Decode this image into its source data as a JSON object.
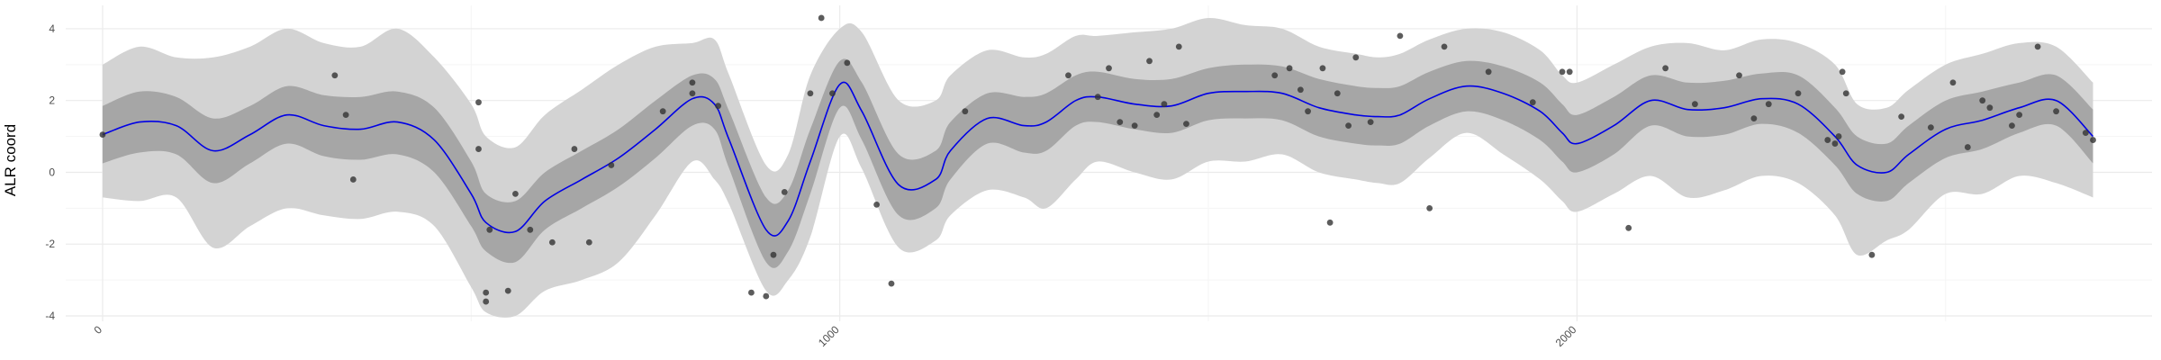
{
  "chart_data": {
    "type": "line",
    "title": "",
    "xlabel": "",
    "ylabel": "ALR coord",
    "xlim": [
      -50,
      2780
    ],
    "ylim": [
      -4.15,
      4.65
    ],
    "x_ticks": [
      0,
      1000,
      2000
    ],
    "x_tick_labels": [
      "0",
      "1000",
      "2000"
    ],
    "y_ticks": [
      -4,
      -2,
      0,
      2,
      4
    ],
    "y_tick_labels": [
      "-4",
      "-2",
      "0",
      "2",
      "4"
    ],
    "grid": true,
    "legend": "none",
    "colors": {
      "mean_line": "#0000e6",
      "inner_band": "#a6a6a6",
      "outer_band": "#d3d3d3",
      "points": "#333333",
      "grid_major": "#ebebeb",
      "grid_minor": "#f5f5f5"
    },
    "series": [
      {
        "kind": "mean",
        "x": [
          0,
          50,
          100,
          150,
          200,
          250,
          300,
          350,
          400,
          450,
          500,
          520,
          560,
          600,
          650,
          700,
          750,
          800,
          830,
          850,
          900,
          930,
          960,
          1000,
          1030,
          1080,
          1130,
          1150,
          1200,
          1250,
          1280,
          1320,
          1350,
          1400,
          1450,
          1500,
          1550,
          1600,
          1650,
          1700,
          1730,
          1760,
          1800,
          1850,
          1900,
          1950,
          1980,
          2000,
          2050,
          2100,
          2150,
          2200,
          2250,
          2300,
          2350,
          2380,
          2420,
          2450,
          2500,
          2550,
          2600,
          2650,
          2700
        ],
        "y": [
          1.05,
          1.4,
          1.3,
          0.6,
          1.05,
          1.6,
          1.3,
          1.2,
          1.4,
          0.9,
          -0.6,
          -1.4,
          -1.65,
          -0.8,
          -0.2,
          0.4,
          1.2,
          2.05,
          1.9,
          0.9,
          -1.6,
          -1.35,
          0.3,
          2.45,
          1.7,
          -0.35,
          -0.2,
          0.6,
          1.5,
          1.3,
          1.4,
          2.0,
          2.1,
          1.9,
          1.85,
          2.2,
          2.25,
          2.2,
          1.8,
          1.6,
          1.55,
          1.6,
          2.05,
          2.4,
          2.2,
          1.7,
          1.1,
          0.8,
          1.3,
          2.0,
          1.75,
          1.8,
          2.05,
          1.9,
          1.0,
          0.2,
          0.0,
          0.5,
          1.2,
          1.45,
          1.8,
          2.0,
          1.0
        ]
      },
      {
        "kind": "inner_band",
        "x": [
          0,
          50,
          100,
          150,
          200,
          250,
          300,
          350,
          400,
          450,
          500,
          520,
          560,
          600,
          650,
          700,
          750,
          800,
          830,
          850,
          900,
          930,
          960,
          1000,
          1030,
          1080,
          1130,
          1150,
          1200,
          1250,
          1280,
          1320,
          1350,
          1400,
          1450,
          1500,
          1550,
          1600,
          1650,
          1700,
          1730,
          1760,
          1800,
          1850,
          1900,
          1950,
          1980,
          2000,
          2050,
          2100,
          2150,
          2200,
          2250,
          2300,
          2350,
          2380,
          2420,
          2450,
          2500,
          2550,
          2600,
          2650,
          2700
        ],
        "upper": [
          1.85,
          2.25,
          2.1,
          1.5,
          1.85,
          2.4,
          2.15,
          2.1,
          2.25,
          1.8,
          0.3,
          -0.6,
          -0.8,
          0.0,
          0.6,
          1.2,
          2.0,
          2.7,
          2.6,
          1.7,
          -0.7,
          -0.5,
          1.2,
          3.1,
          2.5,
          0.5,
          0.6,
          1.4,
          2.2,
          2.1,
          2.2,
          2.7,
          2.8,
          2.6,
          2.6,
          2.9,
          3.0,
          2.95,
          2.6,
          2.4,
          2.35,
          2.4,
          2.8,
          3.1,
          2.95,
          2.5,
          1.9,
          1.6,
          2.1,
          2.7,
          2.5,
          2.55,
          2.75,
          2.7,
          1.8,
          1.0,
          0.8,
          1.3,
          2.0,
          2.25,
          2.5,
          2.7,
          1.75
        ],
        "lower": [
          0.25,
          0.55,
          0.5,
          -0.3,
          0.25,
          0.8,
          0.45,
          0.35,
          0.5,
          0.0,
          -1.5,
          -2.2,
          -2.5,
          -1.6,
          -1.0,
          -0.4,
          0.4,
          1.3,
          1.2,
          0.1,
          -2.5,
          -2.2,
          -0.6,
          1.8,
          0.9,
          -1.2,
          -1.0,
          -0.2,
          0.8,
          0.55,
          0.6,
          1.3,
          1.4,
          1.2,
          1.1,
          1.45,
          1.5,
          1.45,
          1.0,
          0.8,
          0.75,
          0.8,
          1.3,
          1.7,
          1.45,
          0.9,
          0.3,
          0.0,
          0.5,
          1.3,
          1.0,
          1.05,
          1.35,
          1.1,
          0.2,
          -0.6,
          -0.8,
          -0.3,
          0.4,
          0.65,
          1.1,
          1.3,
          0.25
        ]
      },
      {
        "kind": "outer_band",
        "x": [
          0,
          50,
          100,
          150,
          200,
          250,
          300,
          350,
          400,
          450,
          500,
          520,
          560,
          600,
          650,
          700,
          750,
          800,
          830,
          850,
          900,
          930,
          960,
          1000,
          1030,
          1080,
          1130,
          1150,
          1200,
          1250,
          1280,
          1320,
          1350,
          1400,
          1450,
          1500,
          1550,
          1600,
          1650,
          1700,
          1730,
          1760,
          1800,
          1850,
          1900,
          1950,
          1980,
          2000,
          2050,
          2100,
          2150,
          2200,
          2250,
          2300,
          2350,
          2380,
          2420,
          2450,
          2500,
          2550,
          2600,
          2650,
          2700
        ],
        "upper": [
          3.0,
          3.5,
          3.2,
          3.2,
          3.5,
          4.0,
          3.6,
          3.5,
          4.0,
          3.2,
          1.9,
          1.0,
          0.7,
          1.6,
          2.3,
          3.0,
          3.5,
          3.6,
          3.7,
          2.7,
          0.2,
          0.5,
          2.7,
          4.0,
          3.9,
          2.0,
          2.0,
          2.7,
          3.4,
          3.2,
          3.3,
          3.8,
          3.8,
          3.9,
          4.0,
          4.3,
          4.1,
          4.0,
          3.5,
          3.3,
          3.2,
          3.3,
          3.7,
          4.0,
          3.9,
          3.4,
          2.7,
          2.5,
          3.0,
          3.5,
          3.6,
          3.4,
          3.7,
          3.6,
          3.0,
          1.9,
          1.8,
          2.3,
          3.0,
          3.3,
          3.6,
          3.5,
          2.5
        ],
        "lower": [
          -0.7,
          -0.8,
          -0.7,
          -2.1,
          -1.5,
          -1.0,
          -1.2,
          -1.3,
          -1.1,
          -1.5,
          -3.2,
          -3.9,
          -4.0,
          -3.3,
          -3.0,
          -2.5,
          -1.2,
          0.3,
          -0.2,
          -0.9,
          -3.3,
          -3.0,
          -1.8,
          1.0,
          0.1,
          -2.1,
          -1.9,
          -1.2,
          -0.5,
          -0.7,
          -1.0,
          -0.2,
          0.3,
          0.0,
          -0.2,
          0.3,
          0.3,
          0.5,
          0.0,
          -0.2,
          -0.3,
          -0.3,
          0.4,
          1.1,
          0.5,
          -0.2,
          -0.8,
          -1.1,
          -0.6,
          -0.1,
          -0.7,
          -0.5,
          -0.1,
          -0.3,
          -1.2,
          -2.3,
          -1.9,
          -1.6,
          -0.6,
          -0.6,
          -0.1,
          -0.3,
          -0.7
        ]
      },
      {
        "kind": "points",
        "x": [
          0,
          315,
          330,
          340,
          510,
          510,
          520,
          520,
          525,
          550,
          560,
          580,
          610,
          640,
          660,
          690,
          760,
          800,
          800,
          835,
          880,
          900,
          910,
          925,
          960,
          975,
          990,
          1010,
          1050,
          1070,
          1170,
          1310,
          1350,
          1365,
          1380,
          1400,
          1420,
          1430,
          1440,
          1460,
          1470,
          1590,
          1610,
          1625,
          1635,
          1655,
          1665,
          1675,
          1690,
          1700,
          1720,
          1760,
          1800,
          1820,
          1880,
          1940,
          1980,
          1990,
          2070,
          2120,
          2160,
          2220,
          2240,
          2260,
          2300,
          2340,
          2350,
          2355,
          2360,
          2365,
          2400,
          2440,
          2480,
          2510,
          2530,
          2550,
          2560,
          2590,
          2600,
          2625,
          2650,
          2690,
          2700
        ],
        "y": [
          1.05,
          2.7,
          1.6,
          -0.2,
          1.95,
          0.65,
          -3.35,
          -3.6,
          -1.6,
          -3.3,
          -0.6,
          -1.6,
          -1.95,
          0.65,
          -1.95,
          0.2,
          1.7,
          2.5,
          2.2,
          1.85,
          -3.35,
          -3.45,
          -2.3,
          -0.55,
          2.2,
          4.3,
          2.2,
          3.05,
          -0.9,
          -3.1,
          1.7,
          2.7,
          2.1,
          2.9,
          1.4,
          1.3,
          3.1,
          1.6,
          1.9,
          3.5,
          1.35,
          2.7,
          2.9,
          2.3,
          1.7,
          2.9,
          -1.4,
          2.2,
          1.3,
          3.2,
          1.4,
          3.8,
          -1.0,
          3.5,
          2.8,
          1.95,
          2.8,
          2.8,
          -1.55,
          2.9,
          1.9,
          2.7,
          1.5,
          1.9,
          2.2,
          0.9,
          0.8,
          1.0,
          2.8,
          2.2,
          -2.3,
          1.55,
          1.25,
          2.5,
          0.7,
          2.0,
          1.8,
          1.3,
          1.6,
          3.5,
          1.7,
          1.1,
          0.9
        ]
      }
    ]
  }
}
